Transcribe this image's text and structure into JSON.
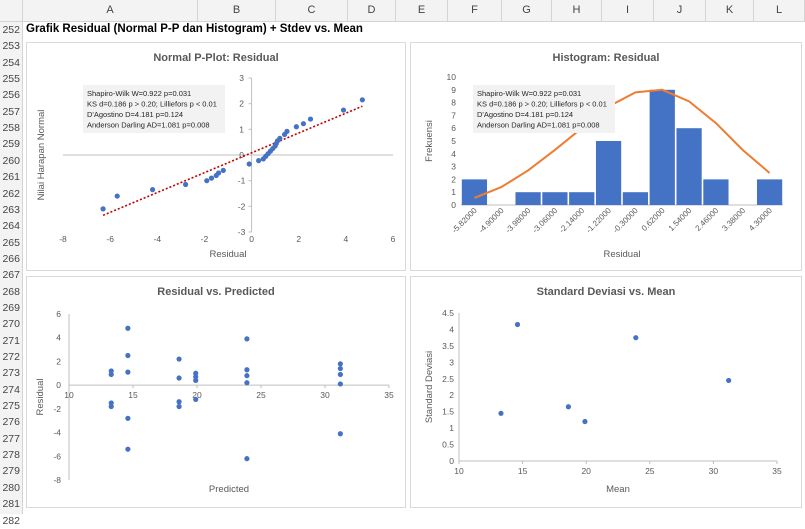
{
  "sheet": {
    "columns": [
      "A",
      "B",
      "C",
      "D",
      "E",
      "F",
      "G",
      "H",
      "I",
      "J",
      "K",
      "L"
    ],
    "rows": [
      "252",
      "253",
      "254",
      "255",
      "256",
      "257",
      "258",
      "259",
      "260",
      "261",
      "262",
      "263",
      "264",
      "265",
      "266",
      "267",
      "268",
      "269",
      "270",
      "271",
      "272",
      "273",
      "274",
      "275",
      "276",
      "277",
      "278",
      "279",
      "280",
      "281",
      "282"
    ],
    "title": "Grafik Residual (Normal P-P dan Histogram) + Stdev vs. Mean"
  },
  "stats_box": {
    "lines": [
      "Shapiro-Wilk W=0.922 p=0.031",
      "KS d=0.186 p > 0.20; Lilliefors p < 0.01",
      "D'Agostino D=4.181 p=0.124",
      "Anderson Darling AD=1.081 p=0.008"
    ]
  },
  "colors": {
    "point": "#4472c4",
    "bar": "#4472c4",
    "trend": "#c00000",
    "normal_curve": "#ed7d31",
    "axis": "#bfbfbf",
    "text": "#595959"
  },
  "chart_data": [
    {
      "type": "scatter",
      "title": "Normal P-Plot: Residual",
      "xlabel": "Residual",
      "ylabel": "Nilai Harapan Normal",
      "xlim": [
        -8,
        6
      ],
      "ylim": [
        -3,
        3
      ],
      "xticks": [
        "-8",
        "-6",
        "-4",
        "-2",
        "0",
        "2",
        "4",
        "6"
      ],
      "yticks": [
        "3",
        "2",
        "1",
        "0",
        "-1",
        "-2",
        "-3"
      ],
      "points": [
        [
          -6.3,
          -2.1
        ],
        [
          -5.7,
          -1.6
        ],
        [
          -4.2,
          -1.35
        ],
        [
          -2.8,
          -1.15
        ],
        [
          -1.9,
          -1.0
        ],
        [
          -1.7,
          -0.9
        ],
        [
          -1.5,
          -0.8
        ],
        [
          -1.4,
          -0.7
        ],
        [
          -1.2,
          -0.6
        ],
        [
          -0.1,
          -0.35
        ],
        [
          0.3,
          -0.22
        ],
        [
          0.5,
          -0.15
        ],
        [
          0.6,
          -0.05
        ],
        [
          0.7,
          0.05
        ],
        [
          0.8,
          0.15
        ],
        [
          0.9,
          0.25
        ],
        [
          1.0,
          0.35
        ],
        [
          1.05,
          0.45
        ],
        [
          1.1,
          0.55
        ],
        [
          1.2,
          0.65
        ],
        [
          1.4,
          0.8
        ],
        [
          1.5,
          0.92
        ],
        [
          1.9,
          1.1
        ],
        [
          2.2,
          1.22
        ],
        [
          2.5,
          1.4
        ],
        [
          3.9,
          1.75
        ],
        [
          4.7,
          2.15
        ]
      ],
      "trend": [
        [
          -6.3,
          -2.35
        ],
        [
          4.7,
          1.9
        ]
      ]
    },
    {
      "type": "bar",
      "title": "Histogram: Residual",
      "xlabel": "Residual",
      "ylabel": "Frekuensi",
      "ylim": [
        0,
        10
      ],
      "yticks": [
        "10",
        "9",
        "8",
        "7",
        "6",
        "5",
        "4",
        "3",
        "2",
        "1",
        "0"
      ],
      "categories": [
        "-5.82000",
        "-4.90000",
        "-3.98000",
        "-3.06000",
        "-2.14000",
        "-1.22000",
        "-0.30000",
        "0.62000",
        "1.54000",
        "2.46000",
        "3.38000",
        "4.30000"
      ],
      "values": [
        2,
        0,
        1,
        1,
        1,
        5,
        1,
        9,
        6,
        2,
        0,
        2
      ],
      "normal_curve": [
        0.55,
        1.4,
        2.7,
        4.3,
        6.0,
        7.7,
        8.8,
        9.0,
        8.1,
        6.4,
        4.3,
        2.5
      ]
    },
    {
      "type": "scatter",
      "title": "Residual vs. Predicted",
      "xlabel": "Predicted",
      "ylabel": "Residual",
      "xlim": [
        10,
        35
      ],
      "ylim": [
        -8,
        6
      ],
      "xticks": [
        "10",
        "15",
        "20",
        "25",
        "30",
        "35"
      ],
      "yticks": [
        "6",
        "4",
        "2",
        "0",
        "-2",
        "-4",
        "-6",
        "-8"
      ],
      "points": [
        [
          13.3,
          1.2
        ],
        [
          13.3,
          0.9
        ],
        [
          13.3,
          -1.5
        ],
        [
          13.3,
          -1.8
        ],
        [
          14.6,
          4.8
        ],
        [
          14.6,
          2.5
        ],
        [
          14.6,
          1.1
        ],
        [
          14.6,
          -2.8
        ],
        [
          14.6,
          -5.4
        ],
        [
          18.6,
          2.2
        ],
        [
          18.6,
          0.6
        ],
        [
          18.6,
          -1.4
        ],
        [
          18.6,
          -1.8
        ],
        [
          19.9,
          1.0
        ],
        [
          19.9,
          0.7
        ],
        [
          19.9,
          0.4
        ],
        [
          19.9,
          -1.2
        ],
        [
          23.9,
          3.9
        ],
        [
          23.9,
          1.3
        ],
        [
          23.9,
          0.8
        ],
        [
          23.9,
          0.2
        ],
        [
          23.9,
          -6.2
        ],
        [
          31.2,
          1.8
        ],
        [
          31.2,
          1.4
        ],
        [
          31.2,
          0.9
        ],
        [
          31.2,
          0.1
        ],
        [
          31.2,
          -4.1
        ]
      ]
    },
    {
      "type": "scatter",
      "title": "Standard Deviasi vs. Mean",
      "xlabel": "Mean",
      "ylabel": "Standard Deviasi",
      "xlim": [
        10,
        35
      ],
      "ylim": [
        0,
        4.5
      ],
      "xticks": [
        "10",
        "15",
        "20",
        "25",
        "30",
        "35"
      ],
      "yticks": [
        "4.5",
        "4",
        "3.5",
        "3",
        "2.5",
        "2",
        "1.5",
        "1",
        "0.5",
        "0"
      ],
      "points": [
        [
          13.3,
          1.45
        ],
        [
          14.6,
          4.15
        ],
        [
          18.6,
          1.65
        ],
        [
          19.9,
          1.2
        ],
        [
          23.9,
          3.75
        ],
        [
          31.2,
          2.45
        ]
      ]
    }
  ]
}
